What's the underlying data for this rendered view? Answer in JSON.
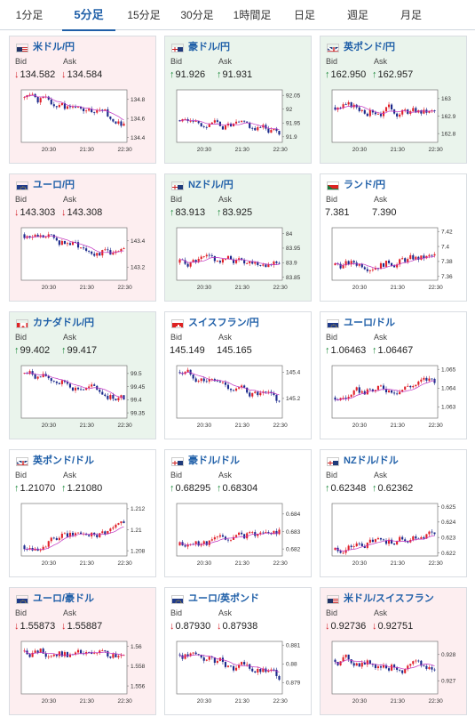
{
  "tabs": [
    {
      "label": "1分足",
      "active": false
    },
    {
      "label": "5分足",
      "active": true
    },
    {
      "label": "15分足",
      "active": false
    },
    {
      "label": "30分足",
      "active": false
    },
    {
      "label": "1時間足",
      "active": false
    },
    {
      "label": "日足",
      "active": false
    },
    {
      "label": "週足",
      "active": false
    },
    {
      "label": "月足",
      "active": false
    }
  ],
  "labels": {
    "bid": "Bid",
    "ask": "Ask"
  },
  "colors": {
    "up_candle": "#e0212a",
    "down_candle": "#1b2a8c",
    "ma_line": "#c030c0",
    "accent": "#1f5fa8",
    "up_arrow": "#1d8a3c",
    "down_arrow": "#d3222a"
  },
  "chart_data": [
    {
      "type": "candlestick",
      "pair": "米ドル/円",
      "flag_icon": "us-flag-icon",
      "trend": "down",
      "bid": "134.582",
      "ask": "134.584",
      "yticks": [
        "134.8",
        "134.6",
        "134.4"
      ],
      "xticks": [
        "20:30",
        "21:30",
        "22:30"
      ],
      "ylim": [
        134.35,
        134.9
      ],
      "start": 134.82,
      "end": 134.55,
      "seed": 1
    },
    {
      "type": "candlestick",
      "pair": "豪ドル/円",
      "flag_icon": "au-flag-icon",
      "trend": "up",
      "bid": "91.926",
      "ask": "91.931",
      "yticks": [
        "92.05",
        "92",
        "91.95",
        "91.9"
      ],
      "xticks": [
        "20:30",
        "21:30",
        "22:30"
      ],
      "ylim": [
        91.88,
        92.07
      ],
      "start": 91.96,
      "end": 91.92,
      "seed": 2
    },
    {
      "type": "candlestick",
      "pair": "英ポンド/円",
      "flag_icon": "gb-flag-icon",
      "trend": "up",
      "bid": "162.950",
      "ask": "162.957",
      "yticks": [
        "163",
        "162.9",
        "162.8"
      ],
      "xticks": [
        "20:30",
        "21:30",
        "22:30"
      ],
      "ylim": [
        162.75,
        163.05
      ],
      "start": 162.95,
      "end": 162.92,
      "seed": 3
    },
    {
      "type": "candlestick",
      "pair": "ユーロ/円",
      "flag_icon": "eu-flag-icon",
      "trend": "down",
      "bid": "143.303",
      "ask": "143.308",
      "yticks": [
        "143.4",
        "143.2"
      ],
      "xticks": [
        "20:30",
        "21:30",
        "22:30"
      ],
      "ylim": [
        143.1,
        143.5
      ],
      "start": 143.45,
      "end": 143.28,
      "seed": 4
    },
    {
      "type": "candlestick",
      "pair": "NZドル/円",
      "flag_icon": "nz-flag-icon",
      "trend": "up",
      "bid": "83.913",
      "ask": "83.925",
      "yticks": [
        "84",
        "83.95",
        "83.9",
        "83.85"
      ],
      "xticks": [
        "20:30",
        "21:30",
        "22:30"
      ],
      "ylim": [
        83.84,
        84.02
      ],
      "start": 83.9,
      "end": 83.91,
      "seed": 5
    },
    {
      "type": "candlestick",
      "pair": "ランド/円",
      "flag_icon": "za-flag-icon",
      "trend": "none",
      "bid": "7.381",
      "ask": "7.390",
      "yticks": [
        "7.42",
        "7.4",
        "7.38",
        "7.36"
      ],
      "xticks": [
        "20:30",
        "21:30",
        "22:30"
      ],
      "ylim": [
        7.355,
        7.425
      ],
      "start": 7.375,
      "end": 7.385,
      "seed": 6
    },
    {
      "type": "candlestick",
      "pair": "カナダドル/円",
      "flag_icon": "ca-flag-icon",
      "trend": "up",
      "bid": "99.402",
      "ask": "99.417",
      "yticks": [
        "99.5",
        "99.45",
        "99.4",
        "99.35"
      ],
      "xticks": [
        "20:30",
        "21:30",
        "22:30"
      ],
      "ylim": [
        99.33,
        99.53
      ],
      "start": 99.5,
      "end": 99.4,
      "seed": 7
    },
    {
      "type": "candlestick",
      "pair": "スイスフラン/円",
      "flag_icon": "ch-flag-icon",
      "trend": "none",
      "bid": "145.149",
      "ask": "145.165",
      "yticks": [
        "145.4",
        "145.2"
      ],
      "xticks": [
        "20:30",
        "21:30",
        "22:30"
      ],
      "ylim": [
        145.05,
        145.45
      ],
      "start": 145.4,
      "end": 145.15,
      "seed": 8
    },
    {
      "type": "candlestick",
      "pair": "ユーロ/ドル",
      "flag_icon": "eu-flag-icon",
      "trend": "up",
      "bid": "1.06463",
      "ask": "1.06467",
      "yticks": [
        "1.065",
        "1.064",
        "1.063"
      ],
      "xticks": [
        "20:30",
        "21:30",
        "22:30"
      ],
      "ylim": [
        1.0624,
        1.0652
      ],
      "start": 1.0635,
      "end": 1.0645,
      "seed": 9
    },
    {
      "type": "candlestick",
      "pair": "英ポンド/ドル",
      "flag_icon": "gb-flag-icon",
      "trend": "up",
      "bid": "1.21070",
      "ask": "1.21080",
      "yticks": [
        "1.212",
        "1.21",
        "1.208"
      ],
      "xticks": [
        "20:30",
        "21:30",
        "22:30"
      ],
      "ylim": [
        1.2075,
        1.2125
      ],
      "start": 1.2085,
      "end": 1.2105,
      "seed": 10
    },
    {
      "type": "candlestick",
      "pair": "豪ドル/ドル",
      "flag_icon": "au-flag-icon",
      "trend": "up",
      "bid": "0.68295",
      "ask": "0.68304",
      "yticks": [
        "0.684",
        "0.683",
        "0.682"
      ],
      "xticks": [
        "20:30",
        "21:30",
        "22:30"
      ],
      "ylim": [
        0.6816,
        0.6846
      ],
      "start": 0.6822,
      "end": 0.6831,
      "seed": 11
    },
    {
      "type": "candlestick",
      "pair": "NZドル/ドル",
      "flag_icon": "nz-flag-icon",
      "trend": "up",
      "bid": "0.62348",
      "ask": "0.62362",
      "yticks": [
        "0.625",
        "0.624",
        "0.623",
        "0.622"
      ],
      "xticks": [
        "20:30",
        "21:30",
        "22:30"
      ],
      "ylim": [
        0.6218,
        0.6252
      ],
      "start": 0.6222,
      "end": 0.6234,
      "seed": 12
    },
    {
      "type": "candlestick",
      "pair": "ユーロ/豪ドル",
      "flag_icon": "eu-flag-icon",
      "trend": "down",
      "bid": "1.55873",
      "ask": "1.55887",
      "yticks": [
        "1.56",
        "1.558",
        "1.556"
      ],
      "xticks": [
        "20:30",
        "21:30",
        "22:30"
      ],
      "ylim": [
        1.5552,
        1.5605
      ],
      "start": 1.5595,
      "end": 1.5587,
      "seed": 13
    },
    {
      "type": "candlestick",
      "pair": "ユーロ/英ポンド",
      "flag_icon": "eu-flag-icon",
      "trend": "down",
      "bid": "0.87930",
      "ask": "0.87938",
      "yticks": [
        "0.881",
        "0.88",
        "0.879"
      ],
      "xticks": [
        "20:30",
        "21:30",
        "22:30"
      ],
      "ylim": [
        0.8784,
        0.8812
      ],
      "start": 0.8805,
      "end": 0.8793,
      "seed": 14
    },
    {
      "type": "candlestick",
      "pair": "米ドル/スイスフラン",
      "flag_icon": "us-flag-icon",
      "trend": "down",
      "bid": "0.92736",
      "ask": "0.92751",
      "yticks": [
        "0.928",
        "0.927"
      ],
      "xticks": [
        "20:30",
        "21:30",
        "22:30"
      ],
      "ylim": [
        0.9265,
        0.9285
      ],
      "start": 0.9278,
      "end": 0.9274,
      "seed": 15
    }
  ]
}
